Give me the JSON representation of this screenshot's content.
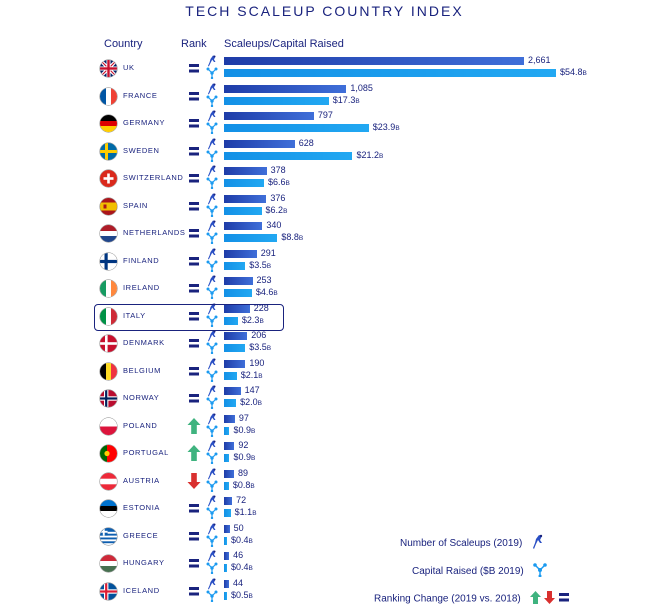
{
  "title": "TECH SCALEUP COUNTRY INDEX",
  "headers": {
    "country": "Country",
    "rank": "Rank",
    "metric": "Scaleups/Capital Raised"
  },
  "legend": {
    "scaleups": "Number of Scaleups  (2019)",
    "capital": "Capital Raised ($B  2019)",
    "rank_change": "Ranking Change  (2019 vs. 2018)"
  },
  "colors": {
    "scaleup_bar": "#2a4fc4",
    "capital_bar": "#1a9af0",
    "text": "#1a237e",
    "rank_up": "#3fb37f",
    "rank_down": "#d9302f",
    "rank_equal": "#1a237e"
  },
  "chart_data": {
    "type": "bar",
    "orientation": "horizontal",
    "title": "TECH SCALEUP COUNTRY INDEX",
    "categories": [
      "UK",
      "FRANCE",
      "GERMANY",
      "SWEDEN",
      "SWITZERLAND",
      "SPAIN",
      "NETHERLANDS",
      "FINLAND",
      "IRELAND",
      "ITALY",
      "DENMARK",
      "BELGIUM",
      "NORWAY",
      "POLAND",
      "PORTUGAL",
      "AUSTRIA",
      "ESTONIA",
      "GREECE",
      "HUNGARY",
      "ICELAND"
    ],
    "series": [
      {
        "name": "Number of Scaleups  (2019)",
        "values": [
          2661,
          1085,
          797,
          628,
          378,
          376,
          340,
          291,
          253,
          228,
          206,
          190,
          147,
          97,
          92,
          89,
          72,
          50,
          46,
          44
        ],
        "labels": [
          "2,661",
          "1,085",
          "797",
          "628",
          "378",
          "376",
          "340",
          "291",
          "253",
          "228",
          "206",
          "190",
          "147",
          "97",
          "92",
          "89",
          "72",
          "50",
          "46",
          "44"
        ]
      },
      {
        "name": "Capital Raised ($B  2019)",
        "values": [
          54.8,
          17.3,
          23.9,
          21.2,
          6.6,
          6.2,
          8.8,
          3.5,
          4.6,
          2.3,
          3.5,
          2.1,
          2.0,
          0.9,
          0.9,
          0.8,
          1.1,
          0.4,
          0.4,
          0.5
        ],
        "labels": [
          "$54.8",
          "$17.3",
          "$23.9",
          "$21.2",
          "$6.6",
          "$6.2",
          "$8.8",
          "$3.5",
          "$4.6",
          "$2.3",
          "$3.5",
          "$2.1",
          "$2.0",
          "$0.9",
          "$0.9",
          "$0.8",
          "$1.1",
          "$0.4",
          "$0.4",
          "$0.5"
        ],
        "suffix": "B"
      }
    ],
    "rank_change": [
      "equal",
      "equal",
      "equal",
      "equal",
      "equal",
      "equal",
      "equal",
      "equal",
      "equal",
      "equal",
      "equal",
      "equal",
      "equal",
      "up",
      "up",
      "down",
      "equal",
      "equal",
      "equal",
      "equal"
    ],
    "highlighted": "ITALY",
    "legend_position": "bottom-right",
    "grid": false
  }
}
